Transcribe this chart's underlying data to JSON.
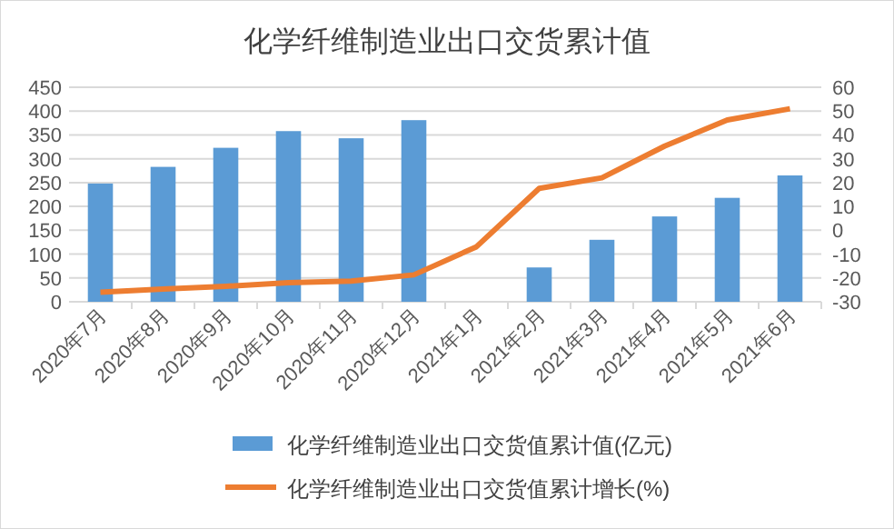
{
  "chart_data": {
    "type": "bar",
    "title": "化学纤维制造业出口交货累计值",
    "categories": [
      "2020年7月",
      "2020年8月",
      "2020年9月",
      "2020年10月",
      "2020年11月",
      "2020年12月",
      "2021年1月",
      "2021年2月",
      "2021年3月",
      "2021年4月",
      "2021年5月",
      "2021年6月"
    ],
    "series": [
      {
        "name": "化学纤维制造业出口交货值累计值(亿元)",
        "color": "#5b9bd5",
        "values": [
          248,
          283,
          323,
          358,
          343,
          381,
          null,
          72,
          130,
          179,
          218,
          265
        ]
      },
      {
        "name": "化学纤维制造业出口交货值累计增长(%)",
        "color": "#ed7d31",
        "type": "line",
        "axis": "y2",
        "values": [
          -26,
          -24.7,
          -23.5,
          -22,
          -21.3,
          -18.7,
          -6.9,
          17.6,
          22,
          35.3,
          46.3,
          51
        ]
      }
    ],
    "ylim": [
      0,
      450
    ],
    "yticks": [
      0,
      50,
      100,
      150,
      200,
      250,
      300,
      350,
      400,
      450
    ],
    "y2lim": [
      -30,
      60
    ],
    "y2ticks": [
      -30,
      -20,
      -10,
      0,
      10,
      20,
      30,
      40,
      50,
      60
    ],
    "grid": "y",
    "legend": "bottom"
  }
}
